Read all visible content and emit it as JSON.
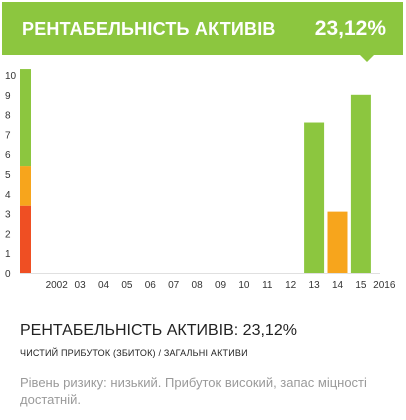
{
  "header": {
    "title": "РЕНТАБЕЛЬНІСТЬ АКТИВІВ",
    "value": "23,12%"
  },
  "colors": {
    "green": "#8cc63f",
    "orange": "#f7a51c",
    "scale_red": "#ef4f23"
  },
  "chart_data": {
    "type": "bar",
    "title": "",
    "xlabel": "",
    "ylabel": "",
    "ylim": [
      0,
      10
    ],
    "yticks": [
      "0",
      "1",
      "2",
      "3",
      "4",
      "5",
      "6",
      "7",
      "8",
      "9",
      "10"
    ],
    "categories": [
      "2002",
      "03",
      "04",
      "05",
      "06",
      "07",
      "08",
      "09",
      "10",
      "11",
      "12",
      "13",
      "14",
      "15",
      "2016"
    ],
    "values": [
      null,
      null,
      null,
      null,
      null,
      null,
      null,
      null,
      null,
      null,
      null,
      7.6,
      3.1,
      9.0,
      null
    ],
    "bar_colors": [
      null,
      null,
      null,
      null,
      null,
      null,
      null,
      null,
      null,
      null,
      null,
      "#8cc63f",
      "#f7a51c",
      "#8cc63f",
      null
    ],
    "risk_scale": {
      "min": 0,
      "max": 10,
      "segments": [
        {
          "from": 0,
          "to": 3.4,
          "color": "#ef4f23"
        },
        {
          "from": 3.4,
          "to": 5.4,
          "color": "#f7a51c"
        },
        {
          "from": 5.4,
          "to": 10.4,
          "color": "#8cc63f"
        }
      ]
    }
  },
  "formula": {
    "metric": "РЕНТАБЕЛЬНІСТЬ АКТИВІВ",
    "separator": ": ",
    "value": "23,12%",
    "description": "ЧИСТИЙ ПРИБУТОК (ЗБИТОК) / ЗАГАЛЬНІ АКТИВИ"
  },
  "risk": {
    "text": "Рівень ризику: низький. Прибуток високий, запас міцності достатній."
  }
}
